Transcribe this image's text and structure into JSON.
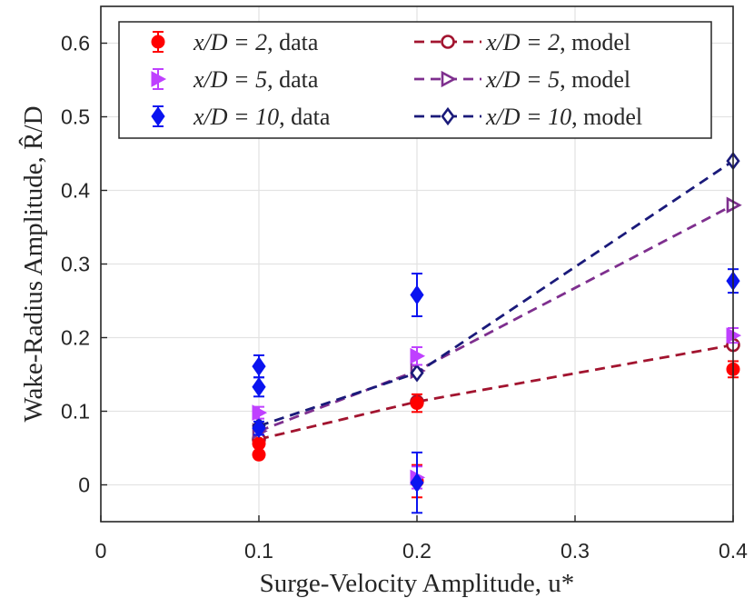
{
  "chart_data": {
    "type": "scatter",
    "title": "",
    "xlabel": "Surge-Velocity Amplitude, u*",
    "ylabel": "Wake-Radius Amplitude, R̂/D",
    "xlim": [
      0,
      0.4
    ],
    "ylim": [
      -0.05,
      0.65
    ],
    "x_ticks": [
      0,
      0.1,
      0.2,
      0.3,
      0.4
    ],
    "x_tick_labels": [
      "0",
      "0.1",
      "0.2",
      "0.3",
      "0.4"
    ],
    "y_ticks": [
      0,
      0.1,
      0.2,
      0.3,
      0.4,
      0.5,
      0.6
    ],
    "y_tick_labels": [
      "0",
      "0.1",
      "0.2",
      "0.3",
      "0.4",
      "0.5",
      "0.6"
    ],
    "grid": true,
    "legend_position": "top",
    "series": [
      {
        "name": "x/D = 2, data",
        "kind": "data",
        "color": "#ff0000",
        "marker": "circle-filled",
        "points": [
          {
            "x": 0.1,
            "y": 0.041,
            "err": 0.004
          },
          {
            "x": 0.1,
            "y": 0.056,
            "err": 0.004
          },
          {
            "x": 0.2,
            "y": 0.111,
            "err": 0.012
          },
          {
            "x": 0.2,
            "y": 0.005,
            "err": 0.022
          },
          {
            "x": 0.4,
            "y": 0.157,
            "err": 0.011
          }
        ]
      },
      {
        "name": "x/D = 5, data",
        "kind": "data",
        "color": "#bf40ff",
        "marker": "triangle-right-filled",
        "points": [
          {
            "x": 0.1,
            "y": 0.098,
            "err": 0.008
          },
          {
            "x": 0.2,
            "y": 0.175,
            "err": 0.012
          },
          {
            "x": 0.2,
            "y": 0.01,
            "err": 0.015
          },
          {
            "x": 0.4,
            "y": 0.203,
            "err": 0.01
          }
        ]
      },
      {
        "name": "x/D = 10, data",
        "kind": "data",
        "color": "#0a14f0",
        "marker": "diamond-filled",
        "points": [
          {
            "x": 0.1,
            "y": 0.161,
            "err": 0.015
          },
          {
            "x": 0.1,
            "y": 0.133,
            "err": 0.013
          },
          {
            "x": 0.1,
            "y": 0.077,
            "err": 0.009
          },
          {
            "x": 0.2,
            "y": 0.258,
            "err": 0.029
          },
          {
            "x": 0.2,
            "y": 0.003,
            "err": 0.041
          },
          {
            "x": 0.4,
            "y": 0.277,
            "err": 0.016
          }
        ]
      },
      {
        "name": "x/D = 2, model",
        "kind": "model",
        "color": "#a2142f",
        "marker": "circle-open",
        "x": [
          0.1,
          0.2,
          0.4
        ],
        "values": [
          0.062,
          0.113,
          0.19
        ]
      },
      {
        "name": "x/D = 5, model",
        "kind": "model",
        "color": "#7e2f8e",
        "marker": "triangle-right-open",
        "x": [
          0.1,
          0.2,
          0.4
        ],
        "values": [
          0.073,
          0.155,
          0.38
        ]
      },
      {
        "name": "x/D = 10, model",
        "kind": "model",
        "color": "#1a1a7a",
        "marker": "diamond-open",
        "x": [
          0.1,
          0.2,
          0.4
        ],
        "values": [
          0.08,
          0.152,
          0.44
        ]
      }
    ],
    "legend": [
      {
        "latex": "x/D = 2",
        "suffix": ", data",
        "series": 0
      },
      {
        "latex": "x/D = 2",
        "suffix": ", model",
        "series": 3
      },
      {
        "latex": "x/D = 5",
        "suffix": ", data",
        "series": 1
      },
      {
        "latex": "x/D = 5",
        "suffix": ", model",
        "series": 4
      },
      {
        "latex": "x/D = 10",
        "suffix": ", data",
        "series": 2
      },
      {
        "latex": "x/D = 10",
        "suffix": ", model",
        "series": 5
      }
    ]
  }
}
